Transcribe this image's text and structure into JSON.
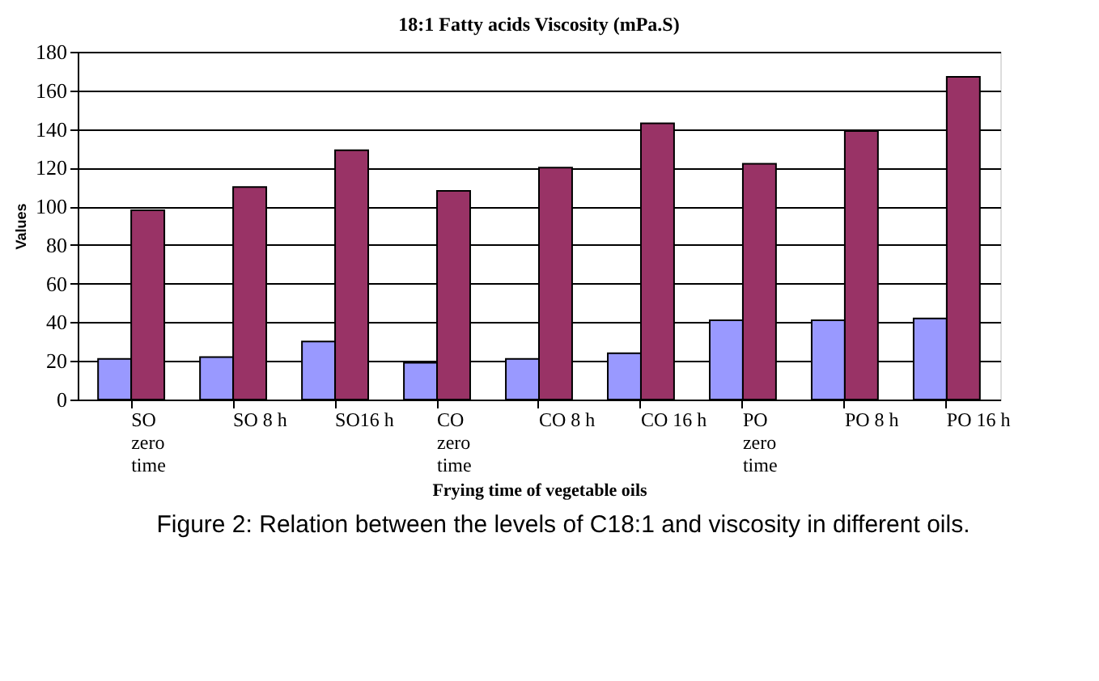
{
  "chart_data": {
    "type": "bar",
    "title": "18:1 Fatty acids  Viscosity (mPa.S)",
    "xlabel": "Frying time of vegetable oils",
    "ylabel": "Values",
    "categories": [
      "SO zero time",
      "SO 8 h",
      "SO16 h",
      "CO zero time",
      "CO 8 h",
      "CO 16 h",
      "PO zero time",
      "PO 8 h",
      "PO 16 h"
    ],
    "series": [
      {
        "color": "#9999ff",
        "values": [
          21,
          22,
          30,
          19,
          21,
          24,
          41,
          41,
          42
        ]
      },
      {
        "color": "#993366",
        "values": [
          98,
          110,
          129,
          108,
          120,
          143,
          122,
          139,
          167
        ]
      }
    ],
    "ylim": [
      0,
      180
    ],
    "yticks": [
      0,
      20,
      40,
      60,
      80,
      100,
      120,
      140,
      160,
      180
    ],
    "grid": "y",
    "annotations": [
      "Figure 2: Relation between the levels of C18:1 and viscosity in different oils."
    ]
  }
}
